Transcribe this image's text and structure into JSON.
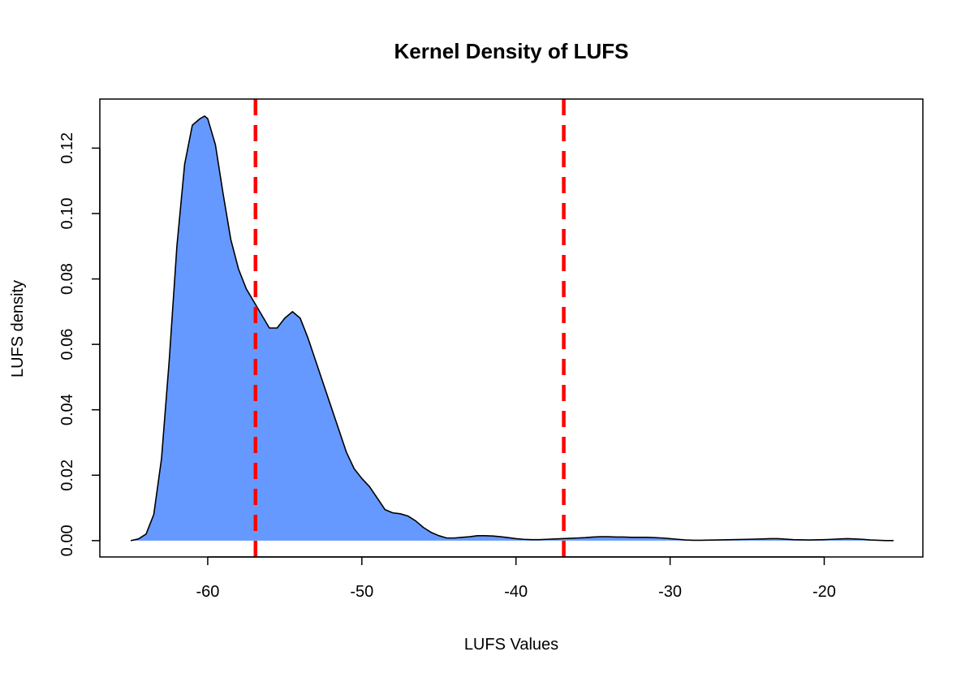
{
  "chart_data": {
    "type": "area",
    "title": "Kernel Density of LUFS",
    "xlabel": "LUFS Values",
    "ylabel": "LUFS density",
    "xlim": [
      -67,
      -13.6
    ],
    "ylim": [
      -0.005,
      0.135
    ],
    "x_ticks": [
      -60,
      -50,
      -40,
      -30,
      -20
    ],
    "x_tick_labels": [
      "-60",
      "-50",
      "-40",
      "-30",
      "-20"
    ],
    "y_ticks": [
      0.0,
      0.02,
      0.04,
      0.06,
      0.08,
      0.1,
      0.12
    ],
    "y_tick_labels": [
      "0.00",
      "0.02",
      "0.04",
      "0.06",
      "0.08",
      "0.10",
      "0.12"
    ],
    "grid": false,
    "fill_color": "#6699FF",
    "line_color": "#000000",
    "vline_color": "#FF0000",
    "series": [
      {
        "x": [
          -65,
          -64.5,
          -64,
          -63.5,
          -63,
          -62.5,
          -62,
          -61.5,
          -61,
          -60.5,
          -60.2,
          -60,
          -59.5,
          -59,
          -58.5,
          -58,
          -57.5,
          -57,
          -56.5,
          -56,
          -55.5,
          -55,
          -54.5,
          -54,
          -53.5,
          -53,
          -52.5,
          -52,
          -51.5,
          -51,
          -50.5,
          -50,
          -49.5,
          -49,
          -48.5,
          -48,
          -47.5,
          -47,
          -46.5,
          -46,
          -45.5,
          -45,
          -44.5,
          -44,
          -43.5,
          -43,
          -42.5,
          -42,
          -41.5,
          -41,
          -40.5,
          -40,
          -39.5,
          -39,
          -38.5,
          -38,
          -37.5,
          -37,
          -36.5,
          -36,
          -35.5,
          -35,
          -34.5,
          -34,
          -33.5,
          -33,
          -32.5,
          -32,
          -31.5,
          -31,
          -30.5,
          -30,
          -29.5,
          -29,
          -28.5,
          -28,
          -27,
          -26,
          -25,
          -24,
          -23.5,
          -23,
          -22,
          -21,
          -20,
          -19.5,
          -19,
          -18.5,
          -18,
          -17.5,
          -17,
          -16.5,
          -16,
          -15.5
        ],
        "y": [
          0.0,
          0.0005,
          0.002,
          0.008,
          0.025,
          0.055,
          0.09,
          0.115,
          0.127,
          0.129,
          0.1298,
          0.129,
          0.121,
          0.106,
          0.092,
          0.083,
          0.077,
          0.073,
          0.069,
          0.065,
          0.065,
          0.068,
          0.07,
          0.068,
          0.062,
          0.055,
          0.048,
          0.041,
          0.034,
          0.027,
          0.022,
          0.019,
          0.0165,
          0.013,
          0.0095,
          0.0085,
          0.0082,
          0.0075,
          0.006,
          0.004,
          0.0025,
          0.0015,
          0.0008,
          0.0008,
          0.001,
          0.0012,
          0.0015,
          0.0015,
          0.0014,
          0.0012,
          0.0009,
          0.0006,
          0.0004,
          0.0003,
          0.0003,
          0.0004,
          0.0005,
          0.0006,
          0.0007,
          0.0008,
          0.0009,
          0.0011,
          0.0012,
          0.0012,
          0.0011,
          0.0011,
          0.001,
          0.001,
          0.001,
          0.0009,
          0.0008,
          0.0006,
          0.0004,
          0.0002,
          0.0001,
          0.0001,
          0.0002,
          0.0003,
          0.0004,
          0.0005,
          0.0006,
          0.0006,
          0.0003,
          0.0002,
          0.0003,
          0.0004,
          0.0005,
          0.0006,
          0.0005,
          0.0004,
          0.0002,
          0.0001,
          0.0,
          0.0
        ]
      }
    ],
    "vlines": [
      -56.9,
      -36.9
    ]
  }
}
